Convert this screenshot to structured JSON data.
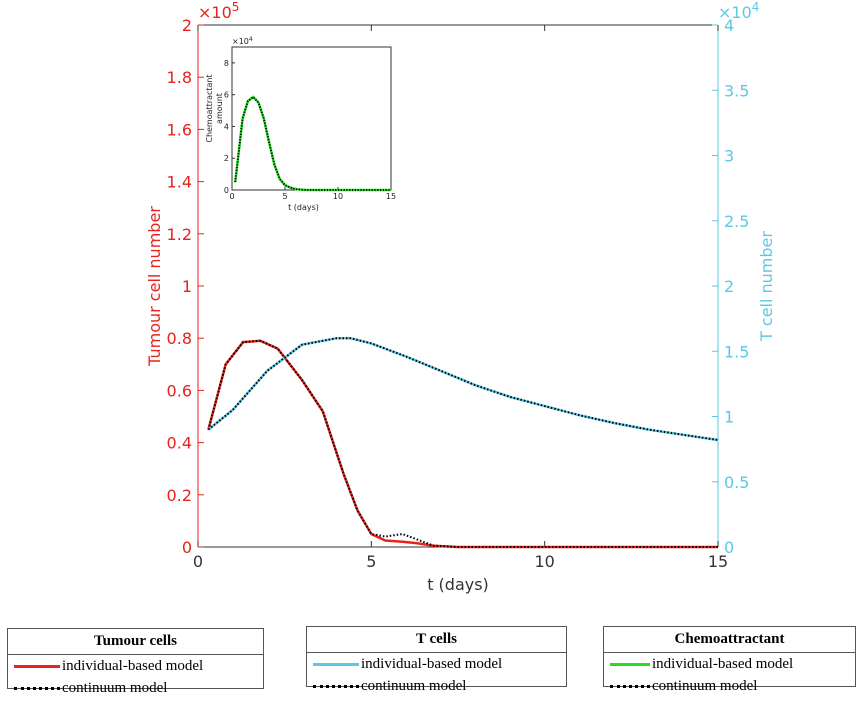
{
  "chart_data": {
    "type": "line",
    "main": {
      "xlabel": "t (days)",
      "ylabel_left": "Tumour cell number",
      "ylabel_right": "T cell number",
      "xlim": [
        0,
        15
      ],
      "ylim_left": [
        0,
        200000
      ],
      "ylim_right": [
        0,
        40000
      ],
      "x_ticks": [
        "0",
        "5",
        "10",
        "15"
      ],
      "left_ticks": [
        "0",
        "0.2",
        "0.4",
        "0.6",
        "0.8",
        "1",
        "1.2",
        "1.4",
        "1.6",
        "1.8",
        "2"
      ],
      "right_ticks": [
        "0",
        "0.5",
        "1",
        "1.5",
        "2",
        "2.5",
        "3",
        "3.5",
        "4"
      ],
      "left_multiplier": "×10",
      "left_exponent": "5",
      "right_multiplier": "×10",
      "right_exponent": "4",
      "left_color": "#e8221c",
      "right_color": "#5bc9e6",
      "series": [
        {
          "name": "Tumour cells — individual-based model",
          "axis": "left",
          "color": "#e8221c",
          "style": "solid",
          "x": [
            0.3,
            0.8,
            1.3,
            1.8,
            2.3,
            3.0,
            3.6,
            4.2,
            4.6,
            5.0,
            5.4,
            5.9,
            6.3,
            6.8,
            7.5,
            8,
            10,
            12,
            15
          ],
          "y": [
            45000,
            70000,
            78500,
            79000,
            76000,
            64000,
            52000,
            28000,
            14000,
            5000,
            2500,
            2000,
            1500,
            500,
            0,
            0,
            0,
            0,
            0
          ]
        },
        {
          "name": "Tumour cells — continuum model",
          "axis": "left",
          "color": "#000000",
          "style": "dotted",
          "x": [
            0.3,
            0.8,
            1.3,
            1.8,
            2.3,
            3.0,
            3.6,
            4.2,
            4.6,
            5.0,
            5.4,
            5.9,
            6.3,
            6.8,
            7.5,
            8,
            10,
            12,
            15
          ],
          "y": [
            45000,
            70000,
            78500,
            79000,
            76000,
            64000,
            52000,
            28000,
            14000,
            5000,
            4000,
            5000,
            3000,
            500,
            0,
            0,
            0,
            0,
            0
          ]
        },
        {
          "name": "T cells — individual-based model",
          "axis": "right",
          "color": "#5bc9e6",
          "style": "solid",
          "x": [
            0.3,
            1,
            2,
            3,
            4,
            4.4,
            5,
            6,
            7,
            8,
            9,
            10,
            11,
            12,
            13,
            14,
            15
          ],
          "y": [
            9000,
            10500,
            13500,
            15500,
            16000,
            16000,
            15600,
            14600,
            13500,
            12400,
            11500,
            10800,
            10100,
            9500,
            9000,
            8600,
            8200
          ]
        },
        {
          "name": "T cells — continuum model",
          "axis": "right",
          "color": "#000000",
          "style": "dotted",
          "x": [
            0.3,
            1,
            2,
            3,
            4,
            4.4,
            5,
            6,
            7,
            8,
            9,
            10,
            11,
            12,
            13,
            14,
            15
          ],
          "y": [
            9000,
            10500,
            13500,
            15500,
            16000,
            16000,
            15600,
            14600,
            13500,
            12400,
            11500,
            10800,
            10100,
            9500,
            9000,
            8600,
            8200
          ]
        }
      ]
    },
    "inset": {
      "xlabel": "t (days)",
      "ylabel": "Chemoattractant amount",
      "ylabel_lines": [
        "Chemoattractant",
        "amount"
      ],
      "xlim": [
        0,
        15
      ],
      "ylim": [
        0,
        90000
      ],
      "x_ticks": [
        "0",
        "5",
        "10",
        "15"
      ],
      "y_ticks": [
        "0",
        "2",
        "4",
        "6",
        "8"
      ],
      "multiplier": "×10",
      "exponent": "4",
      "series": [
        {
          "name": "Chemoattractant — individual-based model",
          "color": "#22dd22",
          "style": "solid",
          "x": [
            0.3,
            0.6,
            1.0,
            1.5,
            2.0,
            2.5,
            3.0,
            3.5,
            4.0,
            4.5,
            5.0,
            5.5,
            6.0,
            7.0,
            8.0,
            10,
            15
          ],
          "y": [
            5000,
            22000,
            45000,
            56000,
            58500,
            55000,
            45000,
            30000,
            16000,
            7000,
            3000,
            1500,
            500,
            0,
            0,
            0,
            0
          ]
        },
        {
          "name": "Chemoattractant — continuum model",
          "color": "#000000",
          "style": "dotted",
          "x": [
            0.3,
            0.6,
            1.0,
            1.5,
            2.0,
            2.5,
            3.0,
            3.5,
            4.0,
            4.5,
            5.0,
            5.5,
            6.0,
            7.0,
            8.0,
            10,
            15
          ],
          "y": [
            5000,
            22000,
            45000,
            56000,
            58500,
            55000,
            45000,
            30000,
            16000,
            7000,
            3000,
            1500,
            500,
            0,
            0,
            0,
            0
          ]
        }
      ]
    }
  },
  "legends": [
    {
      "title": "Tumour cells",
      "swatch_color": "#e8221c",
      "items": [
        "individual-based model",
        "continuum model"
      ]
    },
    {
      "title": "T cells",
      "swatch_color": "#5bc9e6",
      "items": [
        "individual-based model",
        "continuum model"
      ]
    },
    {
      "title": "Chemoattractant",
      "swatch_color": "#22dd22",
      "items": [
        "individual-based model",
        "continuum model"
      ]
    }
  ]
}
